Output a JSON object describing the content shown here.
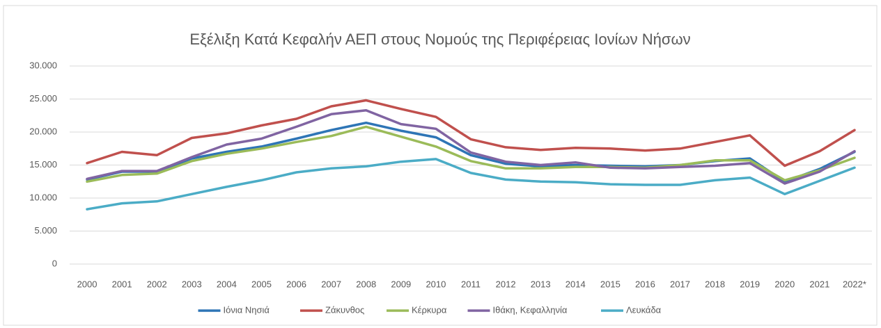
{
  "chart_data": {
    "type": "line",
    "title": "Εξέλιξη Κατά Κεφαλήν ΑΕΠ στους Νομούς της Περιφέρειας Ιονίων Νήσων",
    "categories": [
      "2000",
      "2001",
      "2002",
      "2003",
      "2004",
      "2005",
      "2006",
      "2007",
      "2008",
      "2009",
      "2010",
      "2011",
      "2012",
      "2013",
      "2014",
      "2015",
      "2016",
      "2017",
      "2018",
      "2019",
      "2020",
      "2021",
      "2022*"
    ],
    "series": [
      {
        "name": "Ιόνια Νησιά",
        "color": "#2e75b6",
        "values": [
          12800,
          14000,
          14000,
          16000,
          17000,
          17800,
          19000,
          20300,
          21400,
          20200,
          19200,
          16500,
          15200,
          14800,
          15000,
          14900,
          14800,
          15000,
          15600,
          16000,
          12500,
          14400,
          17000
        ]
      },
      {
        "name": "Ζάκυνθος",
        "color": "#c0504d",
        "values": [
          15300,
          17000,
          16500,
          19100,
          19800,
          21000,
          22000,
          23900,
          24800,
          23500,
          22300,
          18900,
          17700,
          17300,
          17600,
          17500,
          17200,
          17500,
          18500,
          19500,
          14900,
          17100,
          20300
        ]
      },
      {
        "name": "Κέρκυρα",
        "color": "#9bbb59",
        "values": [
          12500,
          13500,
          13700,
          15600,
          16700,
          17500,
          18500,
          19400,
          20800,
          19300,
          17800,
          15600,
          14500,
          14500,
          14700,
          14700,
          14600,
          15000,
          15700,
          15700,
          12700,
          14200,
          16100
        ]
      },
      {
        "name": "Ιθάκη, Κεφαλληνία",
        "color": "#8064a2",
        "values": [
          12900,
          14100,
          14100,
          16200,
          18100,
          19000,
          20800,
          22700,
          23300,
          21200,
          20500,
          16900,
          15500,
          15000,
          15400,
          14600,
          14500,
          14700,
          14900,
          15300,
          12200,
          14000,
          17100
        ]
      },
      {
        "name": "Λευκάδα",
        "color": "#4bacc6",
        "values": [
          8300,
          9200,
          9500,
          10600,
          11700,
          12700,
          13900,
          14500,
          14800,
          15500,
          15900,
          13800,
          12800,
          12500,
          12400,
          12100,
          12000,
          12000,
          12700,
          13100,
          10600,
          12600,
          14600
        ]
      }
    ],
    "ylim": [
      0,
      30000
    ],
    "yticks": [
      0,
      {
        "value": 5000,
        "label": "5.000"
      },
      {
        "value": 10000,
        "label": "10.000"
      },
      {
        "value": 15000,
        "label": "15.000"
      },
      {
        "value": 20000,
        "label": "20.000"
      },
      {
        "value": 25000,
        "label": "25.000"
      },
      {
        "value": 30000,
        "label": "30.000"
      }
    ],
    "grid": true,
    "legend": "bottom"
  }
}
